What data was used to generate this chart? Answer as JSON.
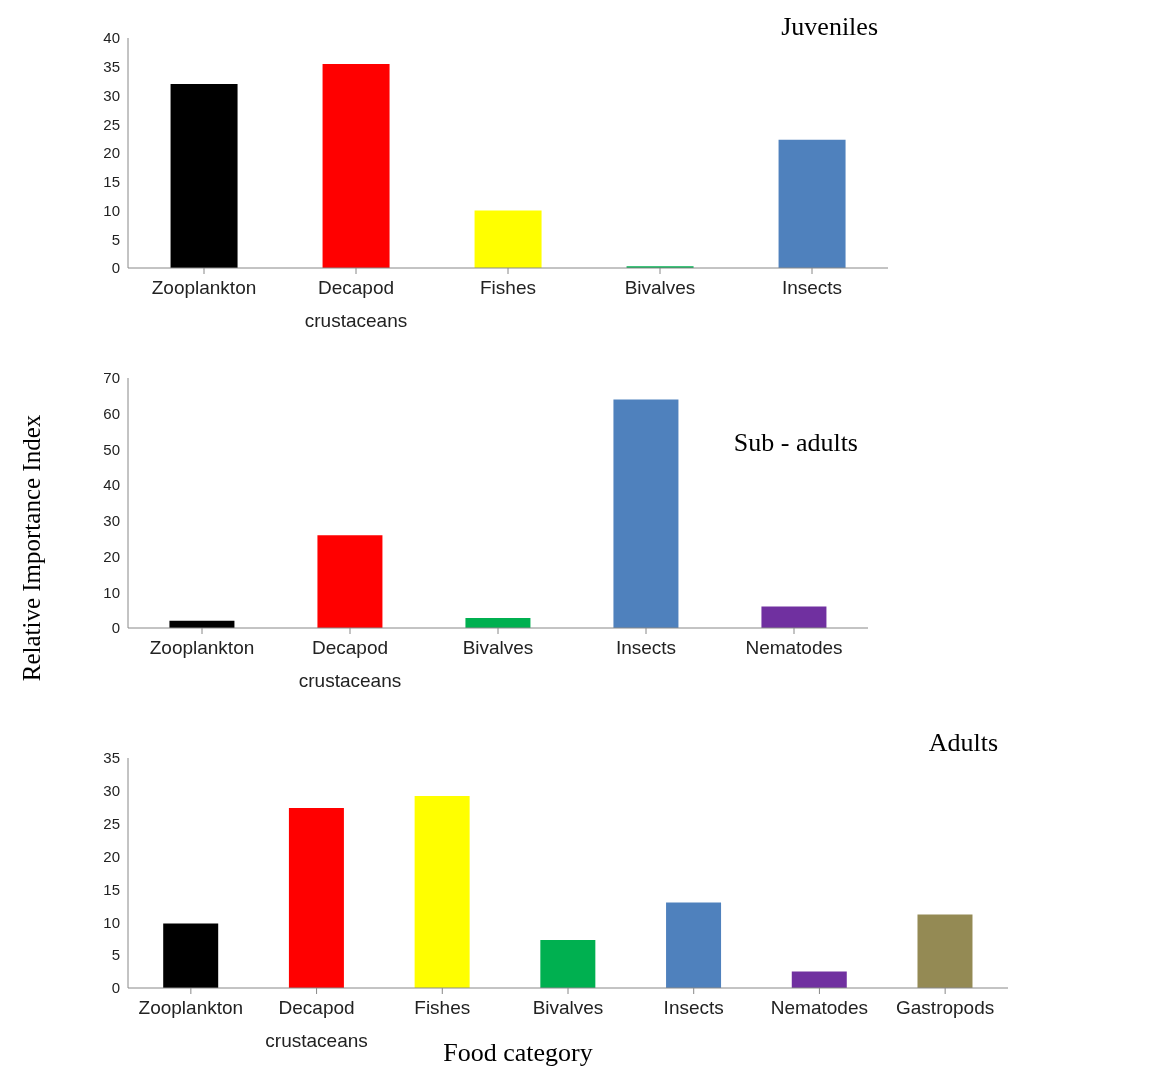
{
  "chart_data": [
    {
      "type": "bar",
      "title": "Juveniles",
      "categories": [
        "Zooplankton",
        "Decapod crustaceans",
        "Fishes",
        "Bivalves",
        "Insects"
      ],
      "values": [
        32,
        35.5,
        10,
        0.3,
        22.3
      ],
      "colors": [
        "#000000",
        "#ff0000",
        "#ffff00",
        "#00b050",
        "#4f81bd"
      ],
      "ylim": [
        0,
        40
      ],
      "yticks": [
        0,
        5,
        10,
        15,
        20,
        25,
        30,
        35,
        40
      ],
      "grid": false
    },
    {
      "type": "bar",
      "title": "Sub - adults",
      "ylabel": "Relative Importance Index",
      "categories": [
        "Zooplankton",
        "Decapod crustaceans",
        "Bivalves",
        "Insects",
        "Nematodes"
      ],
      "values": [
        2,
        26,
        2.8,
        64,
        6
      ],
      "colors": [
        "#000000",
        "#ff0000",
        "#00b050",
        "#4f81bd",
        "#7030a0"
      ],
      "ylim": [
        0,
        70
      ],
      "yticks": [
        0,
        10,
        20,
        30,
        40,
        50,
        60,
        70
      ],
      "grid": false
    },
    {
      "type": "bar",
      "title": "Adults",
      "xlabel": "Food category",
      "categories": [
        "Zooplankton",
        "Decapod crustaceans",
        "Fishes",
        "Bivalves",
        "Insects",
        "Nematodes",
        "Gastropods"
      ],
      "values": [
        9.8,
        27.4,
        29.2,
        7.3,
        13,
        2.5,
        11.2
      ],
      "colors": [
        "#000000",
        "#ff0000",
        "#ffff00",
        "#00b050",
        "#4f81bd",
        "#7030a0",
        "#948a54"
      ],
      "ylim": [
        0,
        35
      ],
      "yticks": [
        0,
        5,
        10,
        15,
        20,
        25,
        30,
        35
      ],
      "grid": false
    }
  ]
}
